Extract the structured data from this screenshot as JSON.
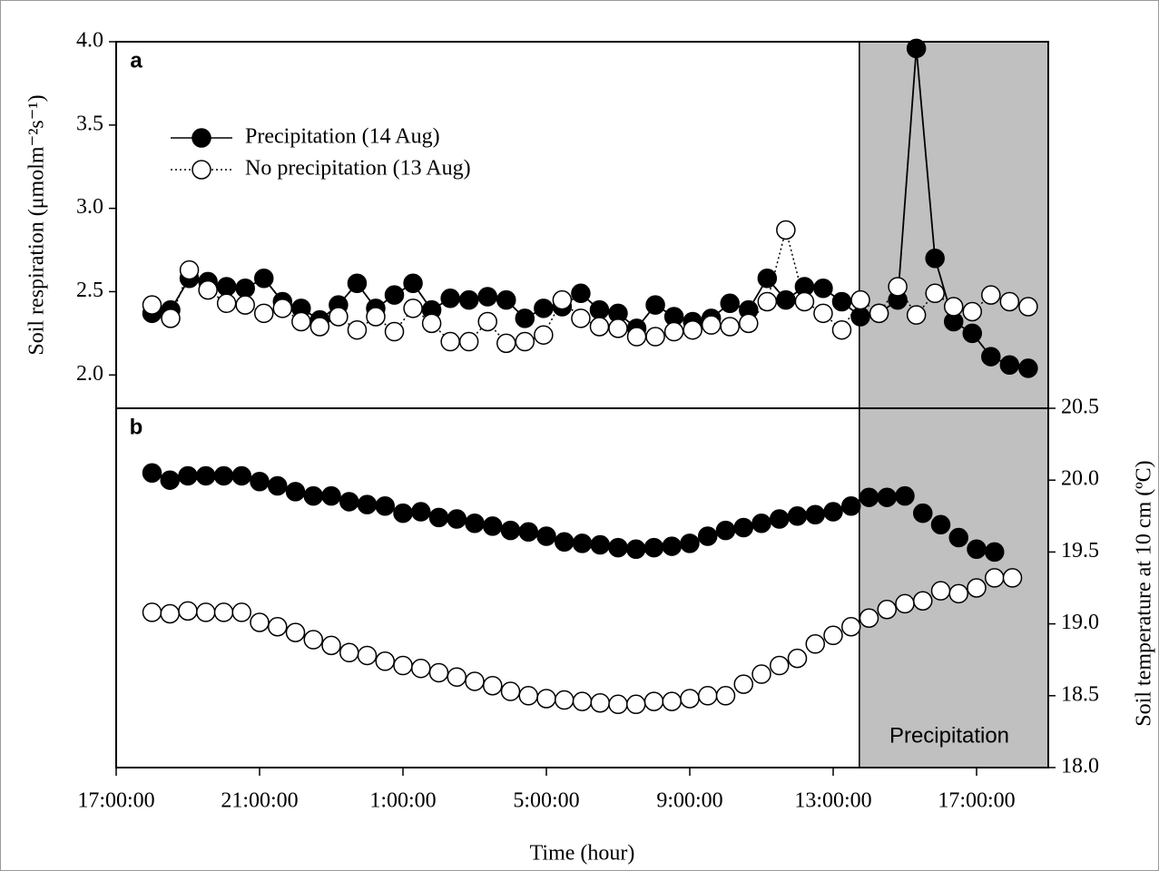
{
  "chart_data": [
    {
      "type": "scatter",
      "panel_label": "a",
      "ylabel": "Soil respiration (μmolm⁻²s⁻¹)",
      "y_axis_side": "left",
      "xlim": [
        0,
        26
      ],
      "ylim": [
        1.8,
        4.0
      ],
      "yticks": [
        {
          "value": 2,
          "label": "2.0"
        },
        2.5,
        {
          "value": 3,
          "label": "3.0"
        },
        3.5,
        {
          "value": 4,
          "label": "4.0"
        }
      ],
      "shade_start": 20.73,
      "legend": "upper left",
      "x": [
        1.0,
        1.52,
        2.04,
        2.56,
        3.08,
        3.6,
        4.12,
        4.64,
        5.16,
        5.68,
        6.2,
        6.72,
        7.24,
        7.76,
        8.28,
        8.8,
        9.32,
        9.84,
        10.36,
        10.88,
        11.4,
        11.92,
        12.44,
        12.96,
        13.48,
        14.0,
        14.52,
        15.04,
        15.56,
        16.08,
        16.6,
        17.12,
        17.64,
        18.16,
        18.68,
        19.2,
        19.72,
        20.24,
        20.76,
        21.28,
        21.8,
        22.32,
        22.84,
        23.36,
        23.88,
        24.4,
        24.92,
        25.44
      ],
      "series": [
        {
          "name": "Precipitation (14 Aug)",
          "color": "#000000",
          "filled": true,
          "line": "solid",
          "values": [
            2.37,
            2.39,
            2.58,
            2.56,
            2.53,
            2.52,
            2.58,
            2.44,
            2.4,
            2.33,
            2.42,
            2.55,
            2.4,
            2.48,
            2.55,
            2.39,
            2.46,
            2.45,
            2.47,
            2.45,
            2.34,
            2.4,
            2.41,
            2.49,
            2.39,
            2.37,
            2.28,
            2.42,
            2.35,
            2.32,
            2.34,
            2.43,
            2.39,
            2.58,
            2.45,
            2.53,
            2.52,
            2.44,
            2.35,
            2.37,
            2.45,
            3.96,
            2.7,
            2.32,
            2.25,
            2.11,
            2.06,
            2.04
          ]
        },
        {
          "name": "No precipitation (13 Aug)",
          "color": "#000000",
          "filled": false,
          "line": "dotted",
          "values": [
            2.42,
            2.34,
            2.63,
            2.51,
            2.43,
            2.42,
            2.37,
            2.4,
            2.32,
            2.29,
            2.35,
            2.27,
            2.35,
            2.26,
            2.4,
            2.31,
            2.2,
            2.2,
            2.32,
            2.19,
            2.2,
            2.24,
            2.45,
            2.34,
            2.29,
            2.28,
            2.23,
            2.23,
            2.26,
            2.27,
            2.3,
            2.29,
            2.31,
            2.44,
            2.87,
            2.44,
            2.37,
            2.27,
            2.45,
            2.37,
            2.53,
            2.36,
            2.49,
            2.41,
            2.38,
            2.48,
            2.44,
            2.41
          ]
        }
      ]
    },
    {
      "type": "scatter",
      "panel_label": "b",
      "ylabel": "Soil temperature at 10 cm (ºC)",
      "y_axis_side": "right",
      "xlabel": "Time (hour)",
      "shade_label": "Precipitation",
      "xlim": [
        0,
        26
      ],
      "ylim": [
        18.0,
        20.5
      ],
      "xticks": [
        {
          "value": 0,
          "label": "17:00:00"
        },
        {
          "value": 4,
          "label": "21:00:00"
        },
        {
          "value": 8,
          "label": "1:00:00"
        },
        {
          "value": 12,
          "label": "5:00:00"
        },
        {
          "value": 16,
          "label": "9:00:00"
        },
        {
          "value": 20,
          "label": "13:00:00"
        },
        {
          "value": 24,
          "label": "17:00:00"
        }
      ],
      "yticks": [
        {
          "value": 18,
          "label": "18.0"
        },
        18.5,
        {
          "value": 19,
          "label": "19.0"
        },
        19.5,
        {
          "value": 20,
          "label": "20.0"
        },
        20.5
      ],
      "x": [
        1.0,
        1.5,
        2.0,
        2.5,
        3.0,
        3.5,
        4.0,
        4.5,
        5.0,
        5.5,
        6.0,
        6.5,
        7.0,
        7.5,
        8.0,
        8.5,
        9.0,
        9.5,
        10.0,
        10.5,
        11.0,
        11.5,
        12.0,
        12.5,
        13.0,
        13.5,
        14.0,
        14.5,
        15.0,
        15.5,
        16.0,
        16.5,
        17.0,
        17.5,
        18.0,
        18.5,
        19.0,
        19.5,
        20.0,
        20.5,
        21.0,
        21.5,
        22.0,
        22.5,
        23.0,
        23.5,
        24.0,
        24.5,
        25.0
      ],
      "series": [
        {
          "name": "Precipitation (14 Aug)",
          "color": "#000000",
          "filled": true,
          "line": "none",
          "values": [
            20.05,
            20.0,
            20.03,
            20.03,
            20.03,
            20.03,
            19.99,
            19.96,
            19.92,
            19.89,
            19.89,
            19.85,
            19.83,
            19.82,
            19.77,
            19.78,
            19.74,
            19.73,
            19.7,
            19.68,
            19.65,
            19.64,
            19.61,
            19.57,
            19.56,
            19.55,
            19.53,
            19.52,
            19.53,
            19.54,
            19.56,
            19.61,
            19.65,
            19.67,
            19.7,
            19.73,
            19.75,
            19.76,
            19.78,
            19.82,
            19.88,
            19.88,
            19.89,
            19.77,
            19.69,
            19.6,
            19.52,
            19.5,
            null
          ]
        },
        {
          "name": "No precipitation (13 Aug)",
          "color": "#000000",
          "filled": false,
          "line": "none",
          "values": [
            19.08,
            19.07,
            19.09,
            19.08,
            19.08,
            19.08,
            19.01,
            18.98,
            18.94,
            18.89,
            18.85,
            18.8,
            18.78,
            18.74,
            18.71,
            18.69,
            18.66,
            18.63,
            18.6,
            18.57,
            18.53,
            18.5,
            18.48,
            18.47,
            18.46,
            18.45,
            18.44,
            18.44,
            18.46,
            18.46,
            18.48,
            18.5,
            18.5,
            18.58,
            18.65,
            18.71,
            18.76,
            18.86,
            18.92,
            18.98,
            19.04,
            19.1,
            19.14,
            19.16,
            19.23,
            19.21,
            19.25,
            19.32,
            19.32
          ]
        }
      ]
    }
  ]
}
